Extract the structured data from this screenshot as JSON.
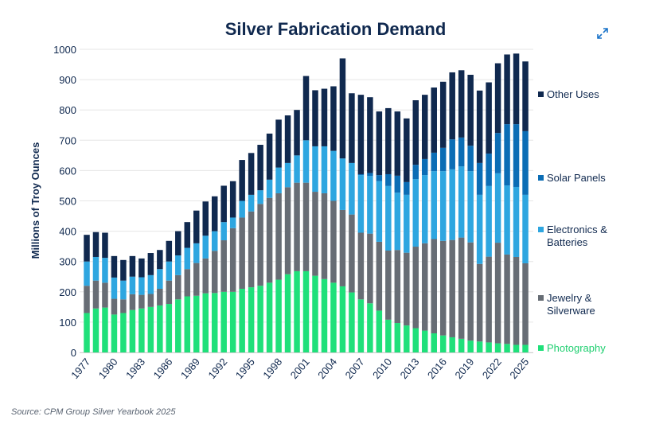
{
  "colors": {
    "Photography": "#1fe07a",
    "Jewelry & Silverware": "#676d75",
    "Electronics & Batteries": "#2ea6e0",
    "Solar Panels": "#0b6db5",
    "Other Uses": "#10294f"
  },
  "source": "Source: CPM Group Silver Yearbook 2025",
  "expand_icon": "expand-icon",
  "chart_data": {
    "type": "bar",
    "stacked": true,
    "title": "Silver Fabrication Demand",
    "xlabel": "",
    "ylabel": "Millions of Troy Ounces",
    "ylim": [
      0,
      1000
    ],
    "yticks": [
      0,
      100,
      200,
      300,
      400,
      500,
      600,
      700,
      800,
      900,
      1000
    ],
    "xtick_labels": [
      "1977",
      "1980",
      "1983",
      "1986",
      "1989",
      "1992",
      "1995",
      "1998",
      "2001",
      "2004",
      "2007",
      "2010",
      "2013",
      "2016",
      "2019",
      "2022",
      "2025"
    ],
    "grid": true,
    "legend_position": "right",
    "categories": [
      1977,
      1978,
      1979,
      1980,
      1981,
      1982,
      1983,
      1984,
      1985,
      1986,
      1987,
      1988,
      1989,
      1990,
      1991,
      1992,
      1993,
      1994,
      1995,
      1996,
      1997,
      1998,
      1999,
      2000,
      2001,
      2002,
      2003,
      2004,
      2005,
      2006,
      2007,
      2008,
      2009,
      2010,
      2011,
      2012,
      2013,
      2014,
      2015,
      2016,
      2017,
      2018,
      2019,
      2020,
      2021,
      2022,
      2023,
      2024,
      2025
    ],
    "series": [
      {
        "name": "Photography",
        "legend": [
          "Photography"
        ],
        "values": [
          130,
          145,
          148,
          125,
          130,
          140,
          145,
          150,
          155,
          160,
          175,
          185,
          187,
          195,
          196,
          200,
          200,
          210,
          215,
          220,
          230,
          240,
          258,
          268,
          268,
          253,
          242,
          230,
          218,
          198,
          175,
          162,
          138,
          108,
          97,
          89,
          80,
          72,
          63,
          56,
          50,
          45,
          39,
          36,
          33,
          30,
          28,
          25,
          25
        ]
      },
      {
        "name": "Jewelry & Silverware",
        "legend": [
          "Jewelry &",
          "Silverware"
        ],
        "values": [
          90,
          92,
          82,
          52,
          45,
          52,
          45,
          43,
          55,
          77,
          80,
          90,
          108,
          115,
          139,
          170,
          210,
          235,
          250,
          270,
          280,
          285,
          287,
          292,
          292,
          277,
          283,
          270,
          252,
          257,
          220,
          230,
          227,
          228,
          241,
          240,
          269,
          288,
          311,
          312,
          321,
          334,
          324,
          256,
          283,
          332,
          295,
          290,
          269
        ]
      },
      {
        "name": "Electronics & Batteries",
        "legend": [
          "Electronics &",
          "Batteries"
        ],
        "values": [
          80,
          78,
          82,
          70,
          62,
          58,
          58,
          62,
          65,
          63,
          65,
          70,
          65,
          75,
          65,
          60,
          35,
          55,
          55,
          45,
          60,
          85,
          80,
          90,
          140,
          150,
          155,
          165,
          170,
          170,
          190,
          190,
          200,
          213,
          189,
          191,
          223,
          225,
          224,
          230,
          233,
          235,
          235,
          228,
          233,
          229,
          228,
          231,
          226
        ]
      },
      {
        "name": "Solar Panels",
        "legend": [
          "Solar Panels"
        ],
        "values": [
          0,
          0,
          0,
          0,
          0,
          0,
          0,
          0,
          0,
          0,
          0,
          0,
          0,
          0,
          0,
          0,
          0,
          0,
          0,
          0,
          0,
          0,
          0,
          0,
          0,
          0,
          0,
          0,
          0,
          0,
          3,
          10,
          20,
          39,
          56,
          42,
          47,
          53,
          61,
          77,
          99,
          95,
          84,
          105,
          107,
          133,
          202,
          207,
          210
        ]
      },
      {
        "name": "Other Uses",
        "legend": [
          "Other Uses"
        ],
        "values": [
          88,
          82,
          83,
          71,
          68,
          68,
          62,
          73,
          63,
          68,
          80,
          85,
          108,
          113,
          115,
          120,
          120,
          135,
          138,
          150,
          152,
          158,
          157,
          150,
          212,
          185,
          190,
          213,
          330,
          230,
          262,
          250,
          210,
          218,
          212,
          210,
          213,
          212,
          215,
          218,
          221,
          222,
          234,
          239,
          235,
          230,
          230,
          233,
          230
        ]
      }
    ]
  }
}
